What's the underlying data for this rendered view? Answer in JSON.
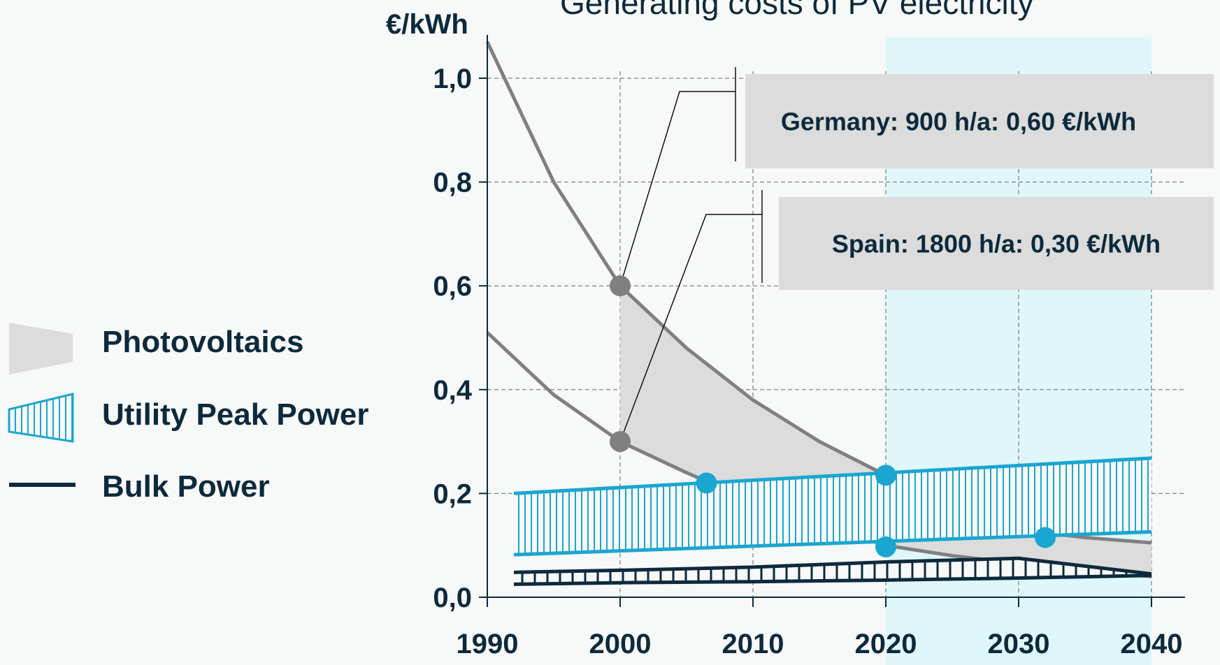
{
  "chart_data": {
    "type": "band",
    "title": "Generating costs of PV electricity",
    "y_label": "€/kWh",
    "xlim": [
      1990,
      2042
    ],
    "ylim": [
      0,
      1.08
    ],
    "xticks": [
      1990,
      2000,
      2010,
      2020,
      2030,
      2040
    ],
    "yticks": [
      {
        "value": 0,
        "label": "0,0"
      },
      {
        "value": 0.2,
        "label": "0,2"
      },
      {
        "value": 0.4,
        "label": "0,4"
      },
      {
        "value": 0.6,
        "label": "0,6"
      },
      {
        "value": 0.8,
        "label": "0,8"
      },
      {
        "value": 1.0,
        "label": "1,0"
      }
    ],
    "grid": true,
    "highlight": [
      2020,
      2040
    ],
    "highlight_color": "#dff7fb",
    "series": [
      {
        "name": "Photovoltaics",
        "color": "#dcdcdc",
        "line_color": "#808080",
        "shade_from": 2000,
        "x": [
          1990,
          1995,
          2000,
          2005,
          2010,
          2015,
          2020,
          2025,
          2030,
          2035,
          2040
        ],
        "upper": [
          1.07,
          0.8,
          0.6,
          0.48,
          0.38,
          0.3,
          0.235,
          0.17,
          0.13,
          0.115,
          0.105
        ],
        "lower": [
          0.51,
          0.39,
          0.3,
          0.24,
          0.185,
          0.14,
          0.1,
          0.08,
          0.065,
          0.05,
          0.04
        ]
      },
      {
        "name": "Utility Peak Power",
        "color": "#1aa6d0",
        "line_color": "#1aa6d0",
        "x": [
          1992,
          2040
        ],
        "upper": [
          0.2,
          0.268
        ],
        "lower": [
          0.082,
          0.126
        ]
      },
      {
        "name": "Bulk Power",
        "color": "#0d2a3c",
        "line_color": "#0d2a3c",
        "x": [
          1992,
          2000,
          2010,
          2020,
          2030,
          2040
        ],
        "upper": [
          0.048,
          0.052,
          0.058,
          0.068,
          0.075,
          0.045
        ],
        "lower": [
          0.025,
          0.028,
          0.03,
          0.033,
          0.037,
          0.042
        ]
      }
    ],
    "points": [
      {
        "x": 2000,
        "y": 0.6,
        "color": "#808080",
        "label": "Germany: 900 h/a: 0,60 €/kWh"
      },
      {
        "x": 2000,
        "y": 0.3,
        "color": "#808080",
        "label": "Spain: 1800 h/a: 0,30 €/kWh"
      },
      {
        "x": 2006.5,
        "y": 0.22,
        "color": "#1aa6d0"
      },
      {
        "x": 2020,
        "y": 0.235,
        "color": "#1aa6d0"
      },
      {
        "x": 2020,
        "y": 0.097,
        "color": "#1aa6d0"
      },
      {
        "x": 2032,
        "y": 0.115,
        "color": "#1aa6d0"
      }
    ]
  }
}
